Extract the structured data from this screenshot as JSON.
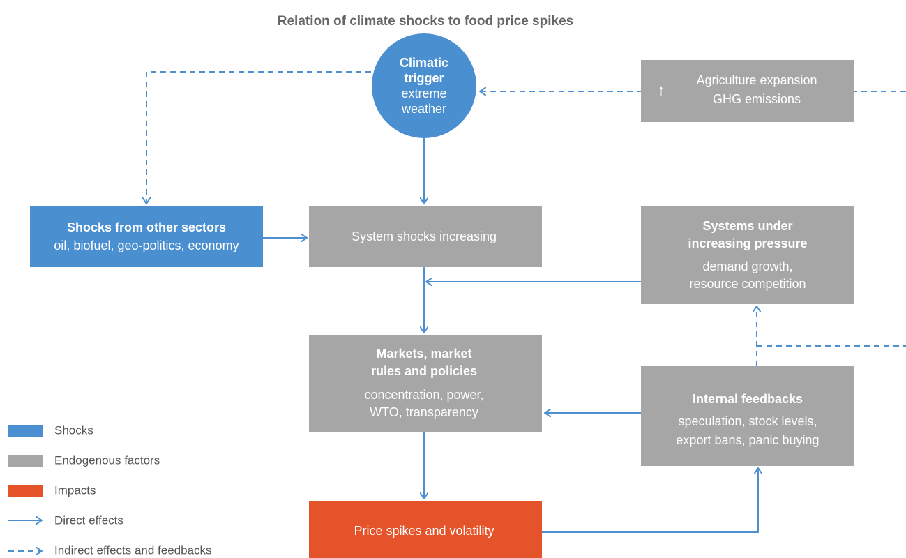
{
  "title": "Relation of climate shocks to food price spikes",
  "nodes": [
    {
      "id": "climatic-trigger",
      "bold_lines": [
        "Climatic",
        "trigger"
      ],
      "lines": [
        "extreme",
        "weather"
      ]
    },
    {
      "id": "agriculture",
      "icon": "↑",
      "bold_lines": [],
      "lines": [
        "Agriculture expansion",
        "GHG emissions"
      ]
    },
    {
      "id": "other-sectors",
      "bold_lines": [
        "Shocks from other sectors"
      ],
      "lines": [
        "oil, biofuel, geo-politics, economy"
      ]
    },
    {
      "id": "system-shocks",
      "bold_lines": [],
      "lines": [
        "System shocks increasing"
      ]
    },
    {
      "id": "pressure",
      "bold_lines": [
        "Systems under",
        "increasing pressure"
      ],
      "lines": [
        "demand growth,",
        "resource competition"
      ]
    },
    {
      "id": "markets",
      "bold_lines": [
        "Markets, market",
        "rules and policies"
      ],
      "lines": [
        "concentration, power,",
        "WTO, transparency"
      ]
    },
    {
      "id": "feedbacks",
      "bold_lines": [
        "Internal feedbacks"
      ],
      "lines": [
        "speculation, stock levels,",
        "export bans, panic buying"
      ]
    },
    {
      "id": "price",
      "bold_lines": [],
      "lines": [
        "Price spikes and volatility"
      ]
    }
  ],
  "legend": [
    "Shocks",
    "Endogenous factors",
    "Impacts",
    "Direct effects",
    "Indirect effects and feedbacks"
  ]
}
